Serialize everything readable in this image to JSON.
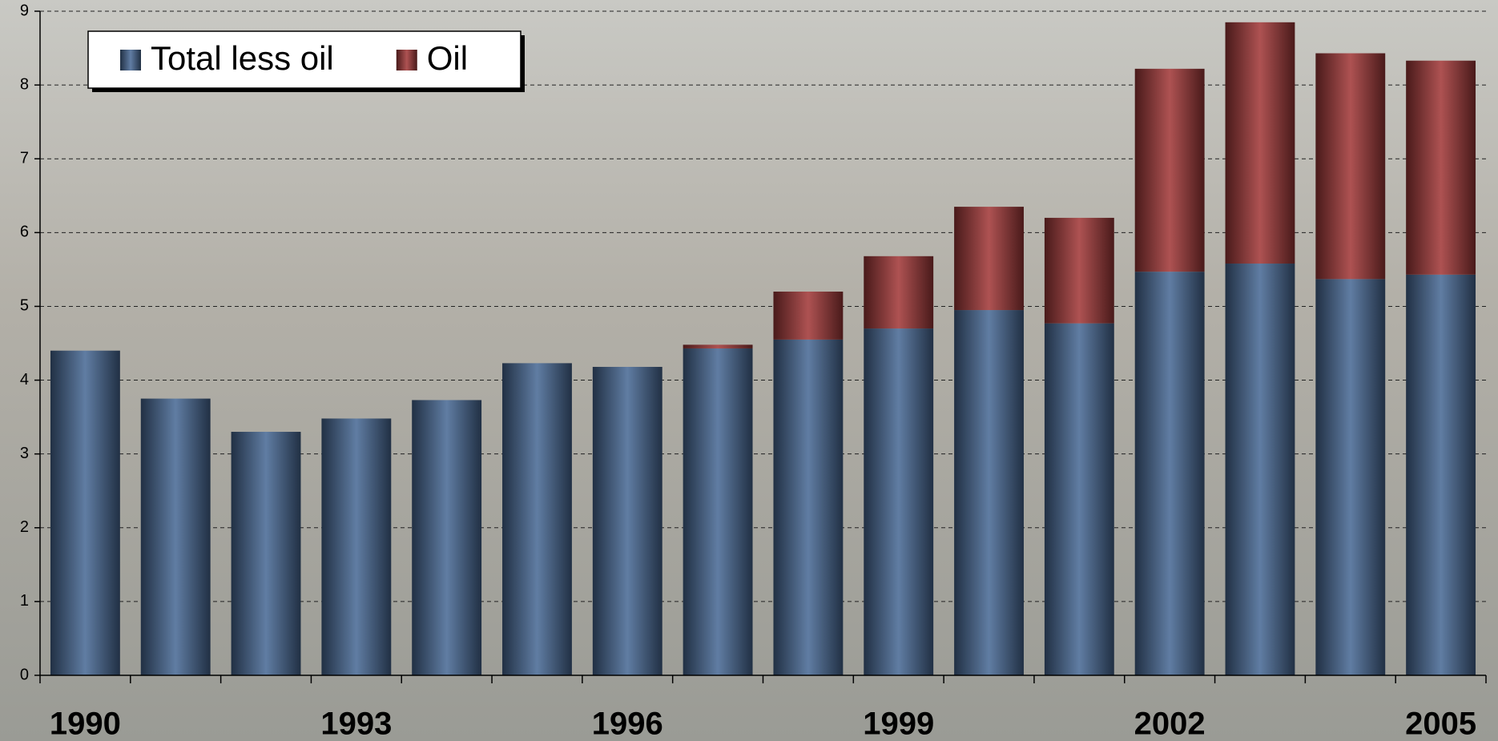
{
  "chart_data": {
    "type": "stacked-bar",
    "categories": [
      "1990",
      null,
      null,
      "1993",
      null,
      null,
      "1996",
      null,
      null,
      "1999",
      null,
      null,
      "2002",
      null,
      null,
      "2005"
    ],
    "series": [
      {
        "name": "Total less oil",
        "color": "#4a6b96",
        "values": [
          4.4,
          3.75,
          3.3,
          3.48,
          3.73,
          4.23,
          4.18,
          4.43,
          4.55,
          4.7,
          4.95,
          4.77,
          5.47,
          5.58,
          5.37,
          5.43
        ]
      },
      {
        "name": "Oil",
        "color": "#a33a3a",
        "values": [
          0,
          0,
          0,
          0,
          0,
          0,
          0,
          0.05,
          0.65,
          0.98,
          1.4,
          1.43,
          2.75,
          3.27,
          3.06,
          2.9
        ]
      }
    ],
    "ylim": [
      0,
      9
    ],
    "yticks": [
      0,
      1,
      2,
      3,
      4,
      5,
      6,
      7,
      8,
      9
    ],
    "grid": true,
    "legend": "upper left"
  }
}
